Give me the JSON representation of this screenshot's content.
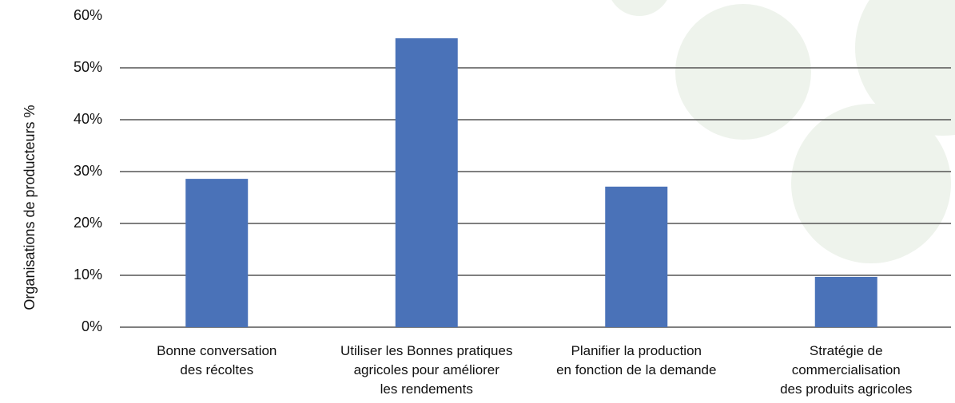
{
  "chart_data": {
    "type": "bar",
    "y_label": "Organisations de producteurs %",
    "categories": [
      "Bonne conversation\ndes récoltes",
      "Utiliser les Bonnes pratiques\nagricoles pour améliorer\nles rendements",
      "Planifier la production\nen fonction de la demande",
      "Stratégie de\ncommercialisation\ndes produits agricoles"
    ],
    "values": [
      28.6,
      55.7,
      27.1,
      9.7
    ],
    "color": "#4a72b8",
    "ylim": [
      0,
      60
    ],
    "yticks": [
      {
        "value": 0,
        "label": "0%"
      },
      {
        "value": 10,
        "label": "10%"
      },
      {
        "value": 20,
        "label": "20%"
      },
      {
        "value": 30,
        "label": "30%"
      },
      {
        "value": 40,
        "label": "40%"
      },
      {
        "value": 50,
        "label": "50%"
      },
      {
        "value": 60,
        "label": "60%"
      }
    ],
    "grid": true
  }
}
